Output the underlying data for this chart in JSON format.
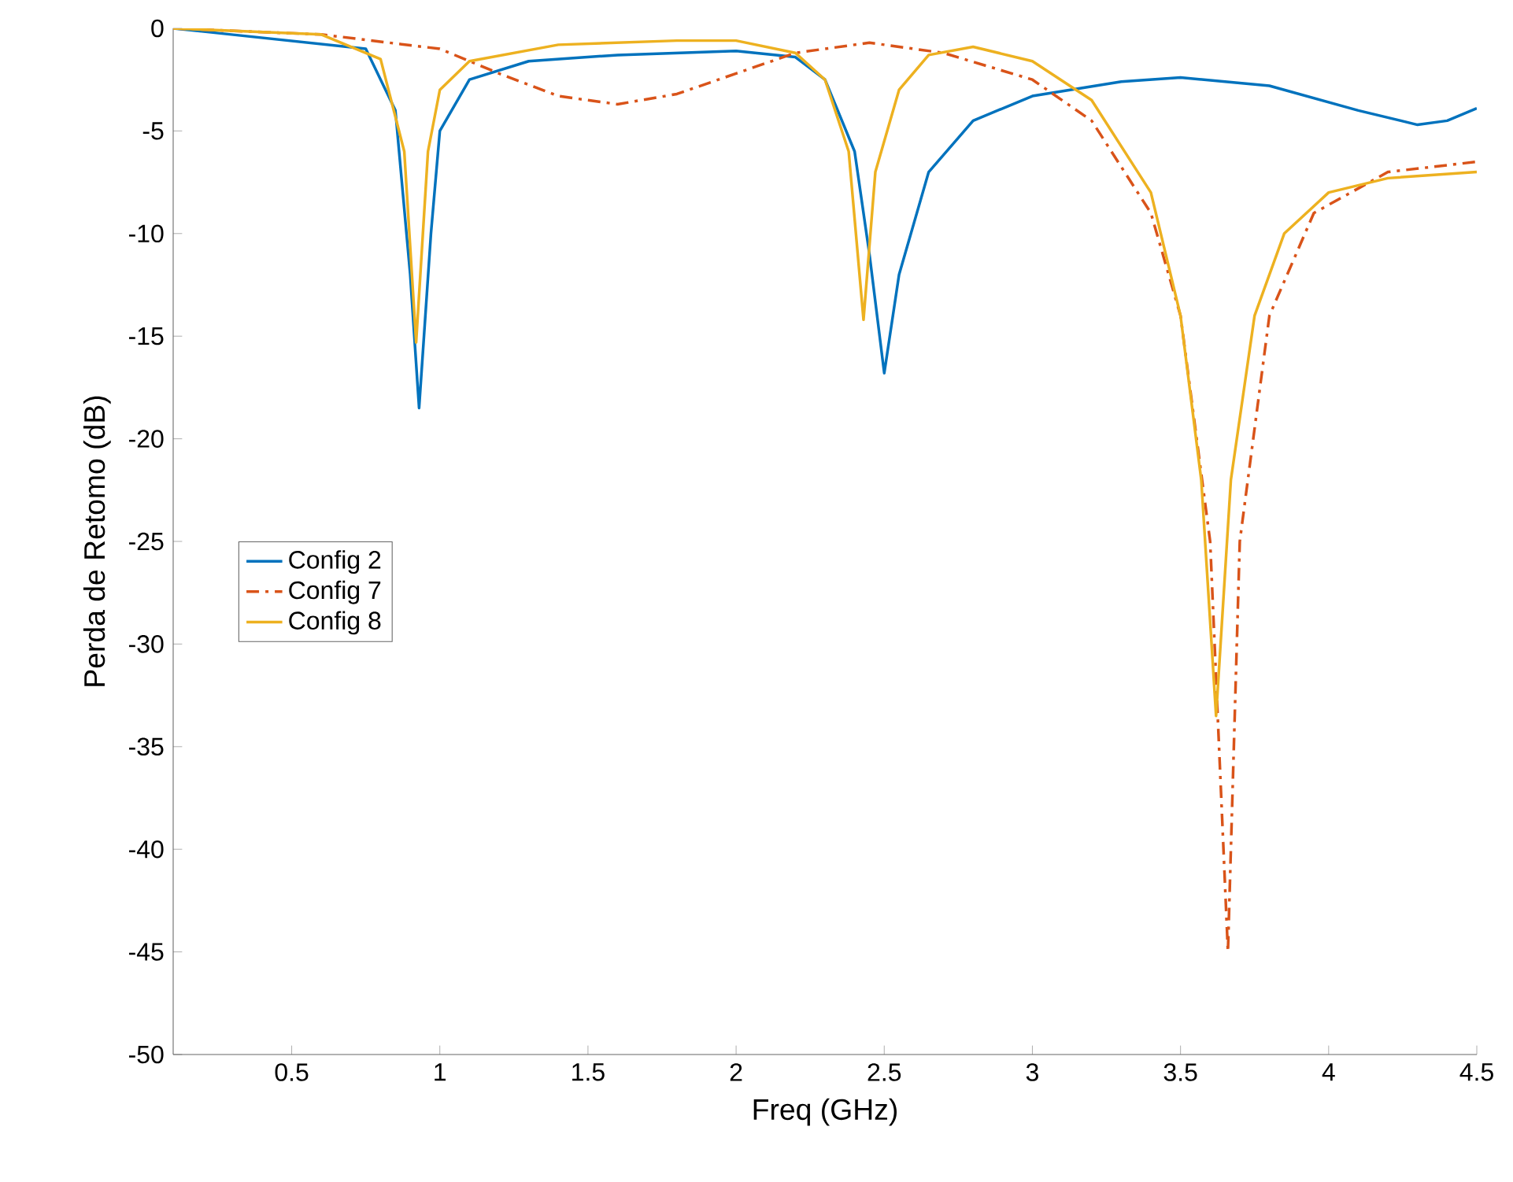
{
  "chart_data": {
    "type": "line",
    "xlabel": "Freq (GHz)",
    "ylabel": "Perda de Retomo (dB)",
    "xlim": [
      0.1,
      4.5
    ],
    "ylim": [
      -50,
      0
    ],
    "xticks": [
      0.5,
      1,
      1.5,
      2,
      2.5,
      3,
      3.5,
      4,
      4.5
    ],
    "yticks": [
      -50,
      -45,
      -40,
      -35,
      -30,
      -25,
      -20,
      -15,
      -10,
      -5,
      0
    ],
    "grid": false,
    "legend": "left",
    "marker": "none",
    "series": [
      {
        "name": "Config 2",
        "color": "#0072bd",
        "line_style": "solid",
        "x": [
          0.1,
          0.75,
          0.85,
          0.9,
          0.93,
          0.97,
          1.0,
          1.1,
          1.3,
          1.6,
          2.0,
          2.2,
          2.3,
          2.4,
          2.45,
          2.5,
          2.55,
          2.65,
          2.8,
          3.0,
          3.3,
          3.5,
          3.8,
          4.1,
          4.3,
          4.4,
          4.5
        ],
        "values": [
          0,
          -1,
          -4,
          -12,
          -18.5,
          -10,
          -5,
          -2.5,
          -1.6,
          -1.3,
          -1.1,
          -1.4,
          -2.5,
          -6,
          -11,
          -16.8,
          -12,
          -7,
          -4.5,
          -3.3,
          -2.6,
          -2.4,
          -2.8,
          -4,
          -4.7,
          -4.5,
          -3.9
        ]
      },
      {
        "name": "Config 7",
        "color": "#d95319",
        "line_style": "dashdot",
        "x": [
          0.1,
          0.6,
          1.0,
          1.2,
          1.4,
          1.6,
          1.8,
          2.0,
          2.2,
          2.45,
          2.7,
          3.0,
          3.2,
          3.4,
          3.5,
          3.6,
          3.66,
          3.7,
          3.8,
          3.95,
          4.2,
          4.5
        ],
        "values": [
          0,
          -0.3,
          -1,
          -2.2,
          -3.3,
          -3.7,
          -3.2,
          -2.2,
          -1.2,
          -0.7,
          -1.2,
          -2.5,
          -4.5,
          -9,
          -14,
          -25,
          -45,
          -25,
          -14,
          -9,
          -7,
          -6.5
        ]
      },
      {
        "name": "Config 8",
        "color": "#edb120",
        "line_style": "solid",
        "x": [
          0.1,
          0.6,
          0.8,
          0.88,
          0.92,
          0.96,
          1.0,
          1.1,
          1.4,
          1.8,
          2.0,
          2.2,
          2.3,
          2.38,
          2.43,
          2.47,
          2.55,
          2.65,
          2.8,
          3.0,
          3.2,
          3.4,
          3.5,
          3.57,
          3.62,
          3.67,
          3.75,
          3.85,
          4.0,
          4.2,
          4.5
        ],
        "values": [
          0,
          -0.3,
          -1.5,
          -6,
          -15.3,
          -6,
          -3,
          -1.6,
          -0.8,
          -0.6,
          -0.6,
          -1.2,
          -2.5,
          -6,
          -14.2,
          -7,
          -3,
          -1.3,
          -0.9,
          -1.6,
          -3.5,
          -8,
          -14,
          -22,
          -33.5,
          -22,
          -14,
          -10,
          -8,
          -7.3,
          -7
        ]
      }
    ]
  }
}
